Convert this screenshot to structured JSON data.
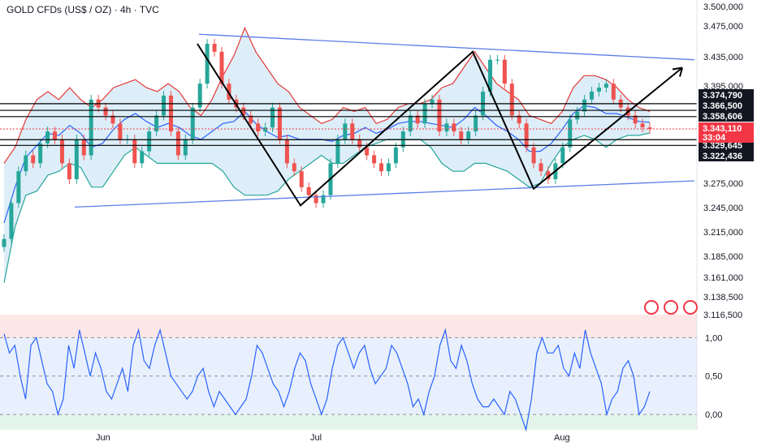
{
  "header": {
    "title": "GOLD CFDs (US$ / OZ) · 4h · TVC"
  },
  "colors": {
    "up": "#26a69a",
    "down": "#ef5350",
    "bb_upper": "#e53935",
    "bb_lower": "#26a69a",
    "bb_mid": "#2962ff",
    "bb_fill": "#cfe7f5",
    "osc_line": "#2962ff",
    "osc_upper_zone": "#fde6e6",
    "osc_mid_zone": "#e8f0fd",
    "osc_lower_zone": "#e3f5ea",
    "channel": "#5b7ee5",
    "zigzag": "#000000",
    "price_marker": "#f23645"
  },
  "chart_data": [
    {
      "type": "candlestick",
      "title": "GOLD CFDs (US$ / OZ) · 4h · TVC",
      "timeframe": "4h",
      "y_ticks": [
        "3.500,000",
        "3.475,000",
        "3.435,000",
        "3.395,000",
        "3.358,606",
        "3.329,645",
        "3.275,000",
        "3.245,000",
        "3.215,000",
        "3.185,000",
        "3.161,000",
        "3.138,500",
        "3.116,500"
      ],
      "x_ticks": [
        "Jun",
        "Jul",
        "Aug"
      ],
      "horizontal_levels": [
        "3.374,790",
        "3.366,500",
        "3.358,606",
        "3.329,645",
        "3.322,436"
      ],
      "current_price": "3.343,110",
      "countdown": "33:04",
      "ohlc_summary": {
        "close_points": [
          3205,
          3250,
          3290,
          3310,
          3300,
          3325,
          3340,
          3330,
          3300,
          3280,
          3330,
          3310,
          3380,
          3370,
          3360,
          3350,
          3330,
          3330,
          3300,
          3315,
          3340,
          3360,
          3385,
          3340,
          3310,
          3330,
          3370,
          3400,
          3450,
          3440,
          3400,
          3380,
          3370,
          3360,
          3350,
          3340,
          3345,
          3370,
          3330,
          3300,
          3290,
          3270,
          3260,
          3250,
          3260,
          3300,
          3330,
          3350,
          3330,
          3320,
          3310,
          3300,
          3290,
          3300,
          3320,
          3340,
          3360,
          3350,
          3375,
          3380,
          3340,
          3350,
          3340,
          3330,
          3340,
          3360,
          3390,
          3430,
          3430,
          3400,
          3360,
          3350,
          3320,
          3300,
          3290,
          3280,
          3300,
          3320,
          3355,
          3365,
          3380,
          3390,
          3395,
          3400,
          3380,
          3370,
          3360,
          3350,
          3345,
          3343
        ]
      },
      "bollinger": {
        "upper": [
          3300,
          3320,
          3355,
          3380,
          3390,
          3380,
          3395,
          3380,
          3370,
          3380,
          3395,
          3400,
          3405,
          3395,
          3390,
          3400,
          3390,
          3370,
          3360,
          3380,
          3410,
          3435,
          3470,
          3440,
          3420,
          3400,
          3390,
          3370,
          3360,
          3350,
          3355,
          3370,
          3365,
          3370,
          3350,
          3355,
          3370,
          3375,
          3375,
          3380,
          3395,
          3400,
          3420,
          3440,
          3420,
          3400,
          3390,
          3380,
          3360,
          3355,
          3350,
          3365,
          3395,
          3410,
          3410,
          3405,
          3395,
          3380,
          3370,
          3365
        ],
        "lower": [
          3150,
          3220,
          3260,
          3265,
          3285,
          3290,
          3300,
          3295,
          3270,
          3270,
          3290,
          3310,
          3320,
          3310,
          3300,
          3300,
          3300,
          3300,
          3300,
          3300,
          3290,
          3270,
          3260,
          3260,
          3260,
          3265,
          3280,
          3290,
          3300,
          3310,
          3300,
          3300,
          3310,
          3320,
          3325,
          3330,
          3330,
          3330,
          3330,
          3320,
          3300,
          3290,
          3290,
          3300,
          3300,
          3295,
          3290,
          3280,
          3270,
          3275,
          3300,
          3320,
          3330,
          3335,
          3330,
          3320,
          3330,
          3335,
          3335,
          3338
        ]
      },
      "channel_lines": [
        {
          "from_date": "late-May",
          "from_price": 3245,
          "to_date": "Aug-end",
          "to_price": 3278
        },
        {
          "from_date": "mid-Jun",
          "from_price": 3462,
          "to_date": "Aug-end",
          "to_price": 3430
        }
      ],
      "zigzag_points": [
        {
          "price": 3450,
          "label": ""
        },
        {
          "price": 3247,
          "label": ""
        },
        {
          "price": 3440,
          "label": ""
        },
        {
          "price": 3268,
          "label": ""
        },
        {
          "price": 3420,
          "label": ""
        }
      ]
    },
    {
      "type": "line",
      "y_ticks": [
        "1,00",
        "0,50",
        "0,00"
      ],
      "ylim": [
        -0.2,
        1.3
      ],
      "values": [
        1.05,
        0.8,
        0.9,
        0.5,
        0.2,
        0.9,
        1.0,
        0.7,
        0.4,
        0.3,
        0.0,
        0.2,
        0.9,
        0.6,
        1.1,
        0.8,
        0.5,
        0.8,
        0.6,
        0.3,
        0.2,
        0.4,
        0.6,
        0.3,
        0.9,
        1.1,
        0.7,
        0.6,
        0.9,
        1.1,
        0.8,
        0.5,
        0.4,
        0.3,
        0.2,
        0.3,
        0.5,
        0.6,
        0.3,
        0.1,
        0.3,
        0.2,
        0.1,
        0.0,
        0.1,
        0.2,
        0.5,
        0.9,
        0.8,
        0.6,
        0.4,
        0.3,
        0.1,
        0.3,
        0.6,
        0.8,
        0.7,
        0.4,
        0.2,
        0.0,
        0.2,
        0.6,
        0.9,
        1.0,
        0.8,
        0.6,
        0.8,
        0.9,
        0.6,
        0.4,
        0.5,
        0.6,
        0.9,
        0.8,
        0.6,
        0.4,
        0.1,
        0.2,
        0.0,
        0.3,
        0.5,
        0.9,
        1.1,
        0.7,
        0.6,
        0.9,
        0.7,
        0.4,
        0.2,
        0.1,
        0.1,
        0.2,
        0.1,
        0.0,
        0.3,
        0.2,
        0.0,
        -0.2,
        0.2,
        0.8,
        1.0,
        0.8,
        0.8,
        0.9,
        0.6,
        0.5,
        0.8,
        0.6,
        1.1,
        0.8,
        0.6,
        0.4,
        0.0,
        0.2,
        0.3,
        0.6,
        0.7,
        0.5,
        0.0,
        0.1,
        0.3
      ]
    }
  ]
}
